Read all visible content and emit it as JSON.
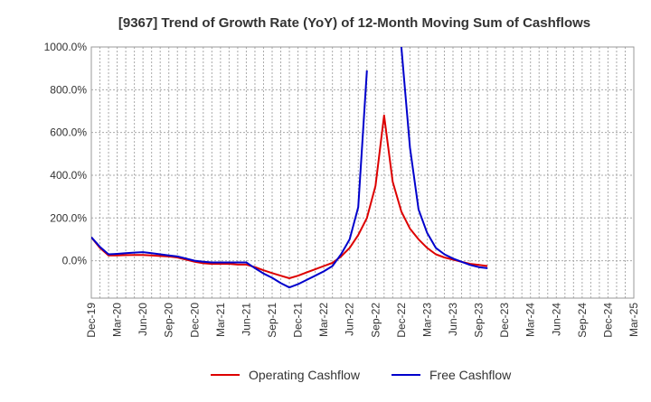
{
  "chart_data": {
    "type": "line",
    "title": "[9367]  Trend of Growth Rate (YoY) of 12-Month Moving Sum of Cashflows",
    "xlabel": "",
    "ylabel": "",
    "ylim": [
      -175,
      1000
    ],
    "grid": true,
    "legend": "bottom",
    "y_ticks": [
      {
        "value": 1000,
        "label": "1000.0%"
      },
      {
        "value": 800,
        "label": "800.0%"
      },
      {
        "value": 600,
        "label": "600.0%"
      },
      {
        "value": 400,
        "label": "400.0%"
      },
      {
        "value": 200,
        "label": "200.0%"
      },
      {
        "value": 0,
        "label": "0.0%"
      }
    ],
    "x_ticks": [
      "Dec-19",
      "Mar-20",
      "Jun-20",
      "Sep-20",
      "Dec-20",
      "Mar-21",
      "Jun-21",
      "Sep-21",
      "Dec-21",
      "Mar-22",
      "Jun-22",
      "Sep-22",
      "Dec-22",
      "Mar-23",
      "Jun-23",
      "Sep-23",
      "Dec-23",
      "Mar-24",
      "Jun-24",
      "Sep-24",
      "Dec-24",
      "Mar-25"
    ],
    "series": [
      {
        "name": "Operating Cashflow",
        "color": "#dd0000",
        "values": [
          110,
          60,
          25,
          25,
          26,
          27,
          27,
          25,
          22,
          20,
          15,
          5,
          -5,
          -12,
          -15,
          -15,
          -15,
          -18,
          -18,
          -30,
          -45,
          -58,
          -70,
          -82,
          -70,
          -55,
          -40,
          -25,
          -10,
          20,
          60,
          120,
          200,
          350,
          680,
          370,
          230,
          150,
          100,
          60,
          30,
          15,
          5,
          -5,
          -15,
          -20,
          -25,
          null,
          null,
          null,
          null,
          null,
          null,
          null,
          null,
          null,
          null,
          null,
          null,
          null,
          null,
          null,
          null,
          null,
          null,
          null
        ]
      },
      {
        "name": "Free Cashflow",
        "color": "#0000cc",
        "values": [
          110,
          65,
          30,
          32,
          35,
          38,
          40,
          35,
          30,
          25,
          20,
          10,
          0,
          -5,
          -8,
          -8,
          -8,
          -8,
          -8,
          -35,
          -60,
          -80,
          -105,
          -125,
          -110,
          -90,
          -70,
          -50,
          -25,
          30,
          100,
          250,
          890,
          null,
          null,
          null,
          1000,
          530,
          240,
          130,
          60,
          30,
          10,
          -5,
          -20,
          -30,
          -35,
          null,
          null,
          null,
          null,
          null,
          null,
          null,
          null,
          null,
          null,
          null,
          null,
          null,
          null,
          null,
          null,
          null,
          null,
          null
        ]
      }
    ]
  }
}
